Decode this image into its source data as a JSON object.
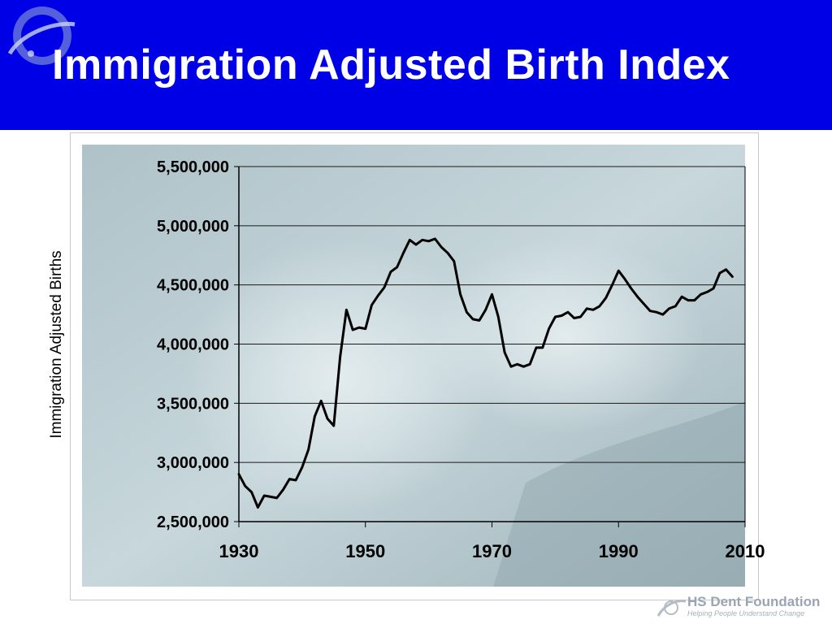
{
  "slide": {
    "title": "Immigration Adjusted Birth Index",
    "header_color": "#0000e6",
    "footer": {
      "brand": "HS Dent Foundation",
      "tagline": "Helping People Understand Change"
    }
  },
  "chart_data": {
    "type": "line",
    "title": "",
    "xlabel": "",
    "ylabel": "Immigration Adjusted Births",
    "xlim": [
      1930,
      2010
    ],
    "ylim": [
      2500000,
      5500000
    ],
    "x_ticks": [
      1930,
      1950,
      1970,
      1990,
      2010
    ],
    "x_tick_labels": [
      "1930",
      "1950",
      "1970",
      "1990",
      "2010"
    ],
    "y_ticks": [
      2500000,
      3000000,
      3500000,
      4000000,
      4500000,
      5000000,
      5500000
    ],
    "y_tick_labels": [
      "2,500,000",
      "3,000,000",
      "3,500,000",
      "4,000,000",
      "4,500,000",
      "5,000,000",
      "5,500,000"
    ],
    "grid": true,
    "legend": "none",
    "line_color": "#000000",
    "series": [
      {
        "x": [
          1930,
          1931,
          1932,
          1933,
          1934,
          1935,
          1936,
          1937,
          1938,
          1939,
          1940,
          1941,
          1942,
          1943,
          1944,
          1945,
          1946,
          1947,
          1948,
          1949,
          1950,
          1951,
          1952,
          1953,
          1954,
          1955,
          1956,
          1957,
          1958,
          1959,
          1960,
          1961,
          1962,
          1963,
          1964,
          1965,
          1966,
          1967,
          1968,
          1969,
          1970,
          1971,
          1972,
          1973,
          1974,
          1975,
          1976,
          1977,
          1978,
          1979,
          1980,
          1981,
          1982,
          1983,
          1984,
          1985,
          1986,
          1987,
          1988,
          1989,
          1990,
          1991,
          1992,
          1993,
          1994,
          1995,
          1996,
          1997,
          1998,
          1999,
          2000,
          2001,
          2002,
          2003,
          2004,
          2005,
          2006,
          2007,
          2008
        ],
        "y": [
          2900000,
          2800000,
          2750000,
          2620000,
          2720000,
          2710000,
          2700000,
          2770000,
          2860000,
          2850000,
          2960000,
          3110000,
          3390000,
          3520000,
          3370000,
          3310000,
          3890000,
          4290000,
          4120000,
          4140000,
          4130000,
          4330000,
          4410000,
          4480000,
          4610000,
          4650000,
          4770000,
          4880000,
          4840000,
          4880000,
          4870000,
          4890000,
          4820000,
          4770000,
          4700000,
          4420000,
          4270000,
          4210000,
          4200000,
          4290000,
          4420000,
          4230000,
          3930000,
          3810000,
          3830000,
          3810000,
          3830000,
          3970000,
          3970000,
          4130000,
          4230000,
          4240000,
          4270000,
          4220000,
          4230000,
          4300000,
          4290000,
          4320000,
          4390000,
          4500000,
          4620000,
          4550000,
          4470000,
          4400000,
          4340000,
          4280000,
          4270000,
          4250000,
          4300000,
          4320000,
          4400000,
          4370000,
          4370000,
          4420000,
          4440000,
          4470000,
          4600000,
          4630000,
          4570000
        ]
      }
    ]
  }
}
